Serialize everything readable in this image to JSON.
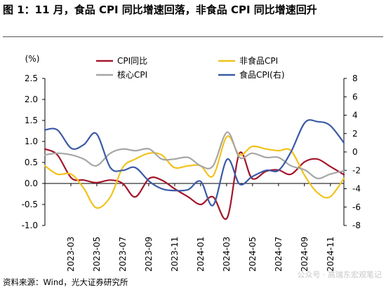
{
  "title": "图 1：11 月，食品 CPI 同比增速回落，非食品 CPI 同比增速回升",
  "source": "资料来源：Wind，光大证券研究所",
  "watermark": "公众号 · 高瑞东宏观笔记",
  "chart_data": {
    "type": "line",
    "y_unit_left": "(%)",
    "ylim_left": [
      -1.0,
      2.5
    ],
    "yticks_left": [
      "2.5",
      "2.0",
      "1.5",
      "1.0",
      "0.5",
      "0.0",
      "-0.5",
      "-1.0"
    ],
    "ylim_right": [
      -8,
      8
    ],
    "yticks_right": [
      "8",
      "6",
      "4",
      "2",
      "0",
      "-2",
      "-4",
      "-6",
      "-8"
    ],
    "xticks": [
      "2023-03",
      "2023-05",
      "2023-07",
      "2023-09",
      "2023-11",
      "2024-01",
      "2024-03",
      "2024-05",
      "2024-07",
      "2024-09",
      "2024-11"
    ],
    "legend": [
      "CPI同比",
      "非食品CPI",
      "核心CPI",
      "食品CPI(右)"
    ],
    "series": [
      {
        "name": "CPI同比",
        "axis": "left",
        "color": "#a3162b",
        "x": [
          2023.0,
          2023.08,
          2023.17,
          2023.25,
          2023.33,
          2023.42,
          2023.5,
          2023.58,
          2023.67,
          2023.75,
          2023.83,
          2023.92,
          2024.0,
          2024.08,
          2024.17,
          2024.25,
          2024.33,
          2024.42,
          2024.5,
          2024.58,
          2024.67,
          2024.75,
          2024.83,
          2024.92
        ],
        "values": [
          0.82,
          0.68,
          0.13,
          0.08,
          0.02,
          0.08,
          0.0,
          -0.32,
          0.12,
          0.08,
          -0.12,
          -0.32,
          -0.5,
          -0.32,
          -0.82,
          0.72,
          0.12,
          0.29,
          0.32,
          0.22,
          0.52,
          0.58,
          0.41,
          0.21
        ]
      },
      {
        "name": "非食品CPI",
        "axis": "left",
        "color": "#f2c21b",
        "x": [
          2023.0,
          2023.08,
          2023.17,
          2023.25,
          2023.33,
          2023.42,
          2023.5,
          2023.58,
          2023.67,
          2023.75,
          2023.83,
          2023.92,
          2024.0,
          2024.08,
          2024.17,
          2024.25,
          2024.33,
          2024.42,
          2024.5,
          2024.58,
          2024.67,
          2024.75,
          2024.83,
          2024.92
        ],
        "values": [
          0.42,
          0.22,
          0.22,
          -0.12,
          -0.58,
          -0.32,
          0.38,
          0.58,
          0.72,
          0.68,
          0.38,
          0.42,
          0.42,
          0.18,
          1.12,
          0.68,
          0.88,
          0.82,
          0.78,
          0.78,
          0.18,
          -0.22,
          -0.32,
          0.12
        ]
      },
      {
        "name": "核心CPI",
        "axis": "left",
        "color": "#a6a6a6",
        "x": [
          2023.0,
          2023.08,
          2023.17,
          2023.25,
          2023.33,
          2023.42,
          2023.5,
          2023.58,
          2023.67,
          2023.75,
          2023.83,
          2023.92,
          2024.0,
          2024.08,
          2024.17,
          2024.25,
          2024.33,
          2024.42,
          2024.5,
          2024.58,
          2024.67,
          2024.75,
          2024.83,
          2024.92
        ],
        "values": [
          0.68,
          0.72,
          0.68,
          0.58,
          0.42,
          0.72,
          0.82,
          0.78,
          0.82,
          0.58,
          0.58,
          0.62,
          0.42,
          0.42,
          1.22,
          0.62,
          0.72,
          0.62,
          0.62,
          0.42,
          0.32,
          0.12,
          0.22,
          0.3
        ]
      },
      {
        "name": "食品CPI(右)",
        "axis": "right",
        "color": "#3b5aa6",
        "x": [
          2023.0,
          2023.08,
          2023.17,
          2023.25,
          2023.33,
          2023.42,
          2023.5,
          2023.58,
          2023.67,
          2023.75,
          2023.83,
          2023.92,
          2024.0,
          2024.08,
          2024.17,
          2024.25,
          2024.33,
          2024.42,
          2024.5,
          2024.58,
          2024.67,
          2024.75,
          2024.83,
          2024.92
        ],
        "values": [
          2.4,
          2.4,
          0.4,
          0.8,
          2.0,
          -1.7,
          -2.0,
          -1.7,
          -3.2,
          -4.0,
          -4.2,
          -4.1,
          -3.2,
          -5.8,
          -0.8,
          -3.5,
          -2.7,
          -2.0,
          -2.0,
          0.0,
          3.2,
          3.3,
          2.9,
          1.0
        ]
      }
    ]
  }
}
